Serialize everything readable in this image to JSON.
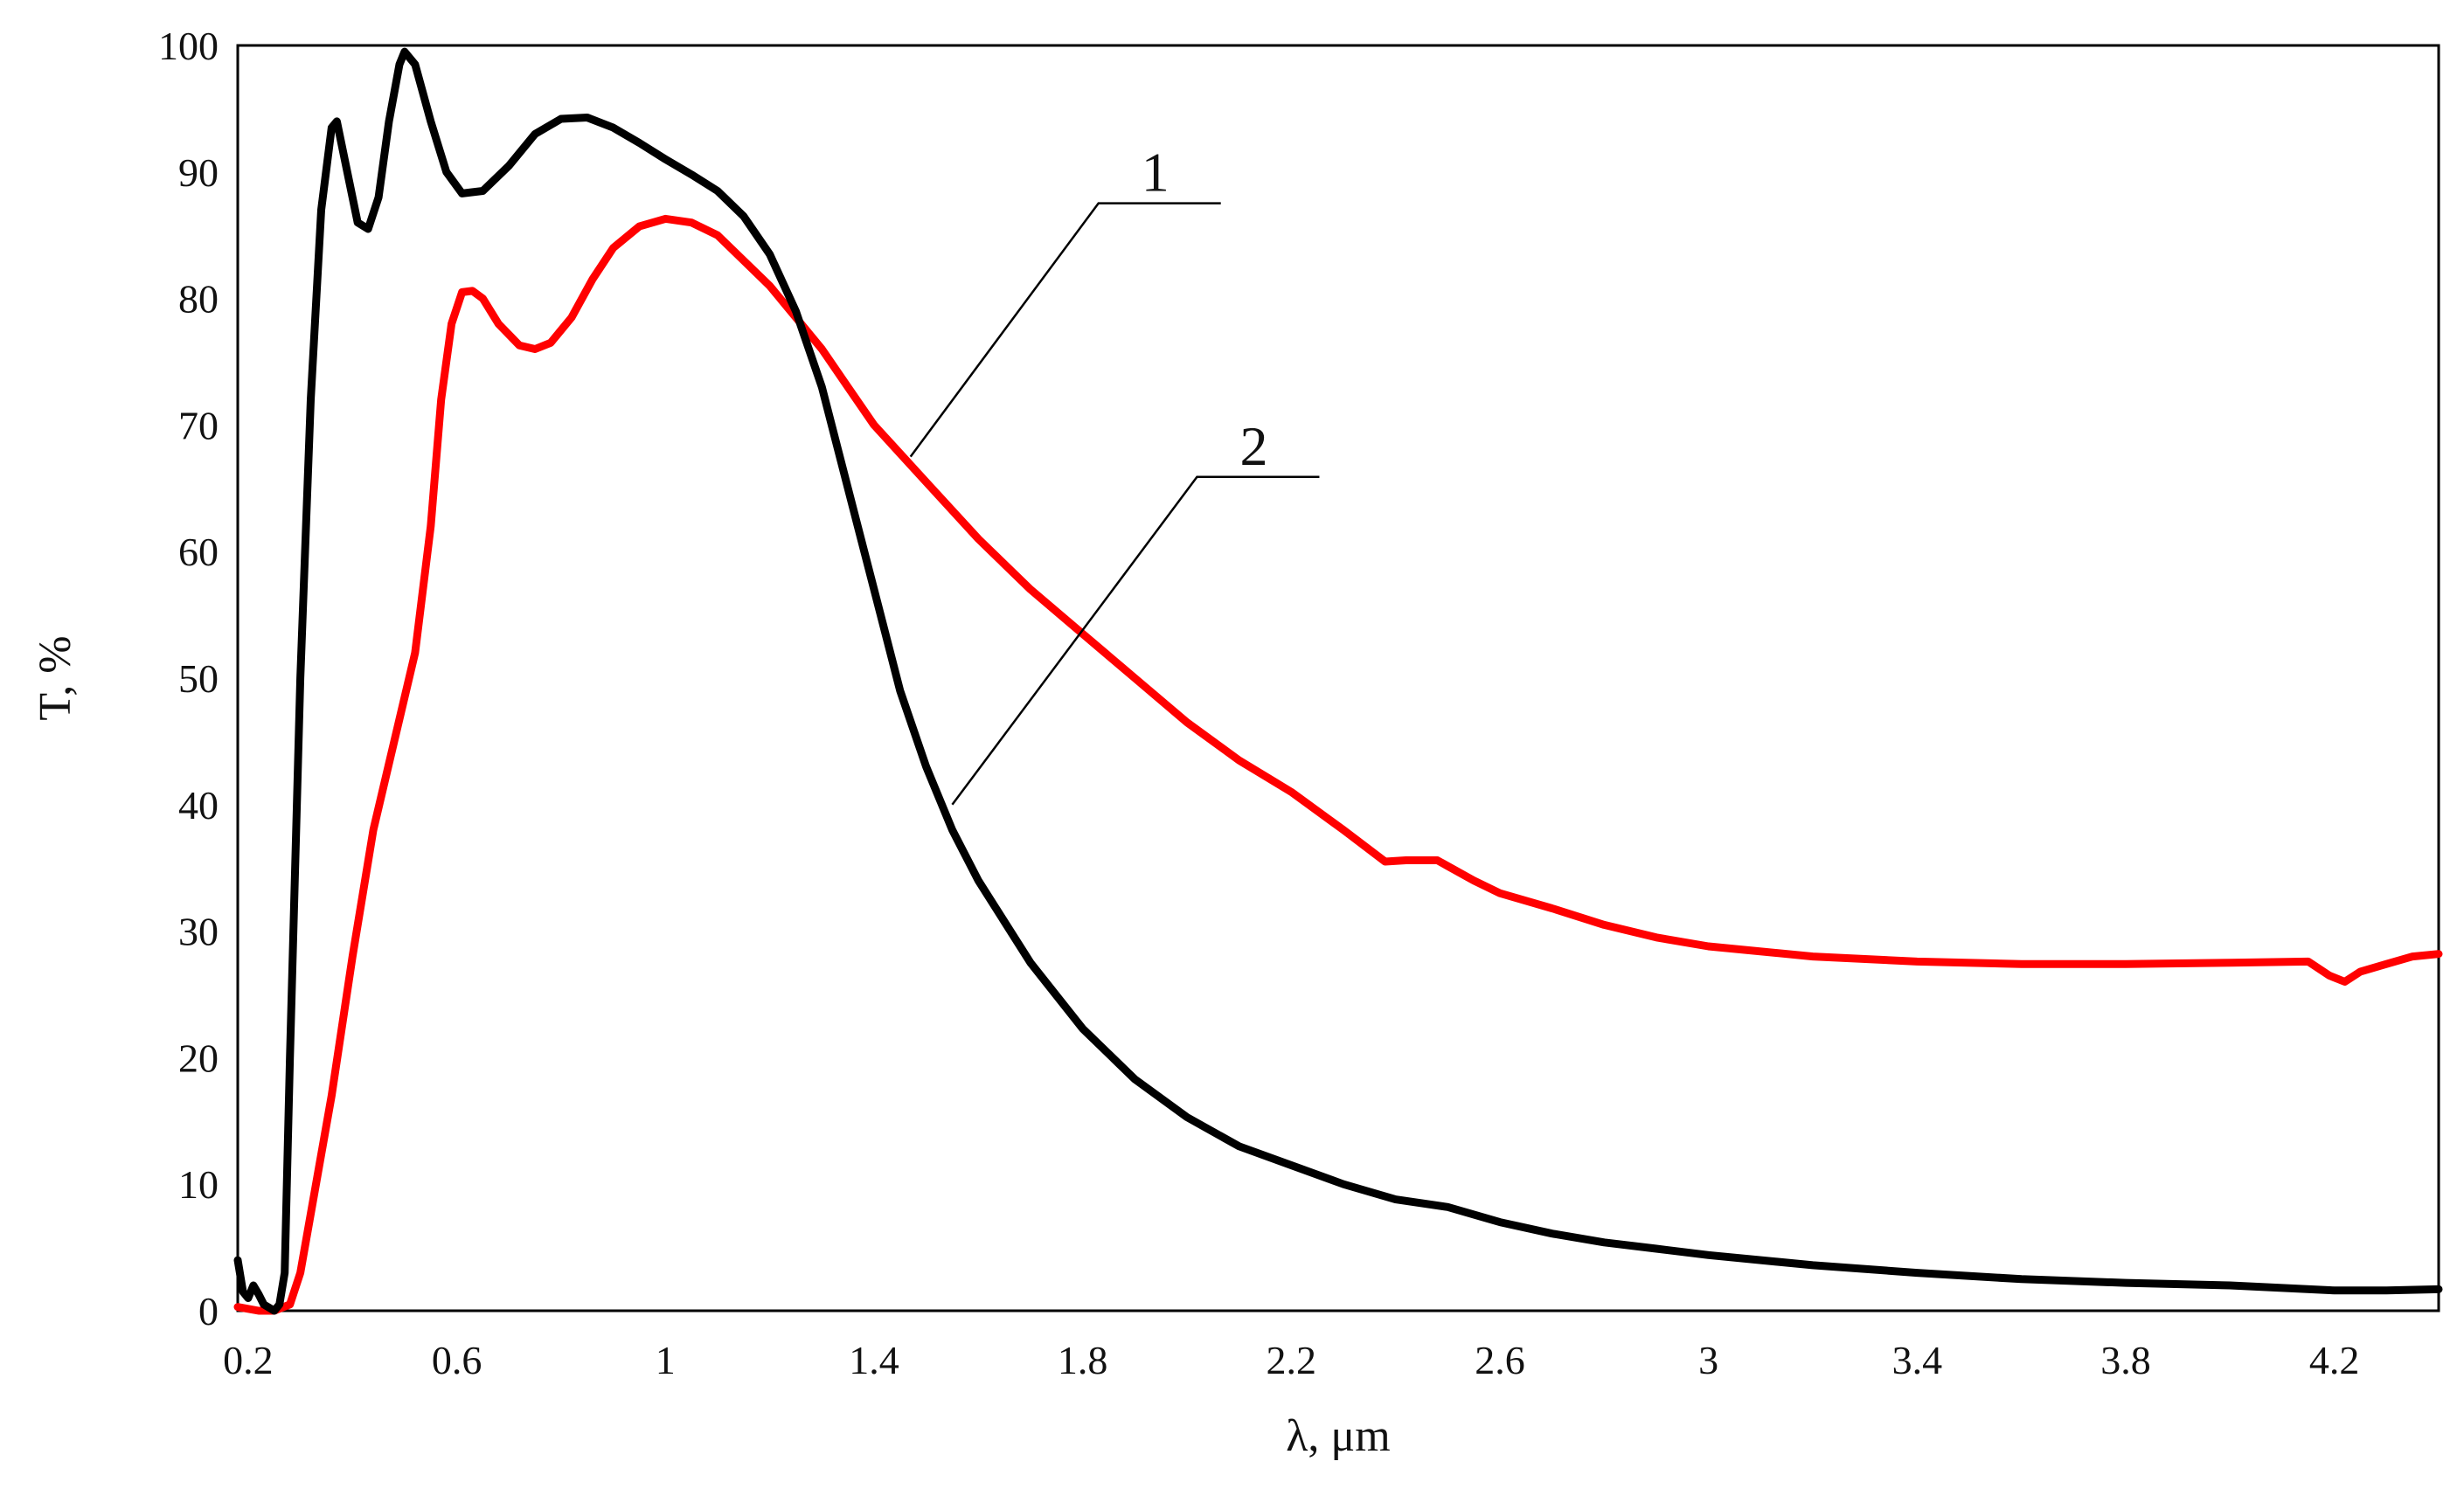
{
  "chart_data": {
    "type": "line",
    "xlabel": "λ, μm",
    "ylabel": "T, %",
    "xlim": [
      0.18,
      4.4
    ],
    "ylim": [
      0,
      100
    ],
    "x_ticks": [
      0.2,
      0.6,
      1,
      1.4,
      1.8,
      2.2,
      2.6,
      3,
      3.4,
      3.8,
      4.2
    ],
    "x_tick_labels": [
      "0.2",
      "0.6",
      "1",
      "1.4",
      "1.8",
      "2.2",
      "2.6",
      "3",
      "3.4",
      "3.8",
      "4.2"
    ],
    "y_ticks": [
      0,
      10,
      20,
      30,
      40,
      50,
      60,
      70,
      80,
      90,
      100
    ],
    "y_tick_labels": [
      "0",
      "10",
      "20",
      "30",
      "40",
      "50",
      "60",
      "70",
      "80",
      "90",
      "100"
    ],
    "grid": false,
    "series": [
      {
        "name": "1",
        "color": "#ff0000",
        "points": [
          [
            0.18,
            0.3
          ],
          [
            0.22,
            0
          ],
          [
            0.25,
            0
          ],
          [
            0.28,
            0.5
          ],
          [
            0.3,
            3
          ],
          [
            0.33,
            10
          ],
          [
            0.36,
            17
          ],
          [
            0.4,
            28
          ],
          [
            0.44,
            38
          ],
          [
            0.48,
            45
          ],
          [
            0.52,
            52
          ],
          [
            0.55,
            62
          ],
          [
            0.57,
            72
          ],
          [
            0.59,
            78
          ],
          [
            0.61,
            80.5
          ],
          [
            0.63,
            80.6
          ],
          [
            0.65,
            80
          ],
          [
            0.68,
            78
          ],
          [
            0.72,
            76.3
          ],
          [
            0.75,
            76
          ],
          [
            0.78,
            76.5
          ],
          [
            0.82,
            78.5
          ],
          [
            0.86,
            81.5
          ],
          [
            0.9,
            84
          ],
          [
            0.95,
            85.7
          ],
          [
            1.0,
            86.3
          ],
          [
            1.05,
            86
          ],
          [
            1.1,
            85
          ],
          [
            1.15,
            83
          ],
          [
            1.2,
            81
          ],
          [
            1.25,
            78.5
          ],
          [
            1.3,
            76
          ],
          [
            1.35,
            73
          ],
          [
            1.4,
            70
          ],
          [
            1.5,
            65.5
          ],
          [
            1.6,
            61
          ],
          [
            1.7,
            57
          ],
          [
            1.8,
            53.5
          ],
          [
            1.9,
            50
          ],
          [
            2.0,
            46.5
          ],
          [
            2.1,
            43.5
          ],
          [
            2.2,
            41
          ],
          [
            2.3,
            38
          ],
          [
            2.38,
            35.5
          ],
          [
            2.42,
            35.6
          ],
          [
            2.48,
            35.6
          ],
          [
            2.55,
            34
          ],
          [
            2.6,
            33
          ],
          [
            2.7,
            31.8
          ],
          [
            2.8,
            30.5
          ],
          [
            2.9,
            29.5
          ],
          [
            3.0,
            28.8
          ],
          [
            3.2,
            28
          ],
          [
            3.4,
            27.6
          ],
          [
            3.6,
            27.4
          ],
          [
            3.8,
            27.4
          ],
          [
            4.0,
            27.5
          ],
          [
            4.15,
            27.6
          ],
          [
            4.19,
            26.5
          ],
          [
            4.22,
            26
          ],
          [
            4.25,
            26.8
          ],
          [
            4.3,
            27.4
          ],
          [
            4.35,
            28
          ],
          [
            4.4,
            28.2
          ]
        ]
      },
      {
        "name": "2",
        "color": "#000000",
        "points": [
          [
            0.18,
            4
          ],
          [
            0.19,
            1.5
          ],
          [
            0.2,
            1
          ],
          [
            0.21,
            2
          ],
          [
            0.22,
            1.3
          ],
          [
            0.23,
            0.5
          ],
          [
            0.25,
            0
          ],
          [
            0.26,
            0.5
          ],
          [
            0.27,
            3
          ],
          [
            0.28,
            20
          ],
          [
            0.3,
            50
          ],
          [
            0.32,
            72
          ],
          [
            0.34,
            87
          ],
          [
            0.36,
            93.5
          ],
          [
            0.37,
            94
          ],
          [
            0.39,
            90
          ],
          [
            0.41,
            86
          ],
          [
            0.43,
            85.5
          ],
          [
            0.45,
            88
          ],
          [
            0.47,
            94
          ],
          [
            0.49,
            98.5
          ],
          [
            0.5,
            99.5
          ],
          [
            0.52,
            98.5
          ],
          [
            0.55,
            94
          ],
          [
            0.58,
            90
          ],
          [
            0.61,
            88.3
          ],
          [
            0.65,
            88.5
          ],
          [
            0.7,
            90.5
          ],
          [
            0.75,
            93
          ],
          [
            0.8,
            94.2
          ],
          [
            0.85,
            94.3
          ],
          [
            0.9,
            93.5
          ],
          [
            0.95,
            92.3
          ],
          [
            1.0,
            91
          ],
          [
            1.05,
            89.8
          ],
          [
            1.1,
            88.5
          ],
          [
            1.15,
            86.5
          ],
          [
            1.2,
            83.5
          ],
          [
            1.25,
            79
          ],
          [
            1.3,
            73
          ],
          [
            1.35,
            65
          ],
          [
            1.4,
            57
          ],
          [
            1.45,
            49
          ],
          [
            1.5,
            43
          ],
          [
            1.55,
            38
          ],
          [
            1.6,
            34
          ],
          [
            1.7,
            27.5
          ],
          [
            1.8,
            22.3
          ],
          [
            1.9,
            18.3
          ],
          [
            2.0,
            15.3
          ],
          [
            2.1,
            13
          ],
          [
            2.2,
            11.5
          ],
          [
            2.3,
            10
          ],
          [
            2.4,
            8.8
          ],
          [
            2.5,
            8.2
          ],
          [
            2.6,
            7
          ],
          [
            2.7,
            6.1
          ],
          [
            2.8,
            5.4
          ],
          [
            2.9,
            4.9
          ],
          [
            3.0,
            4.4
          ],
          [
            3.2,
            3.6
          ],
          [
            3.4,
            3
          ],
          [
            3.6,
            2.5
          ],
          [
            3.8,
            2.2
          ],
          [
            4.0,
            2
          ],
          [
            4.2,
            1.6
          ],
          [
            4.3,
            1.6
          ],
          [
            4.4,
            1.7
          ]
        ]
      }
    ],
    "callouts": [
      {
        "label": "1",
        "series": "1",
        "at": [
          1.47,
          67.5
        ]
      },
      {
        "label": "2",
        "series": "2",
        "at": [
          1.55,
          40
        ]
      }
    ]
  }
}
